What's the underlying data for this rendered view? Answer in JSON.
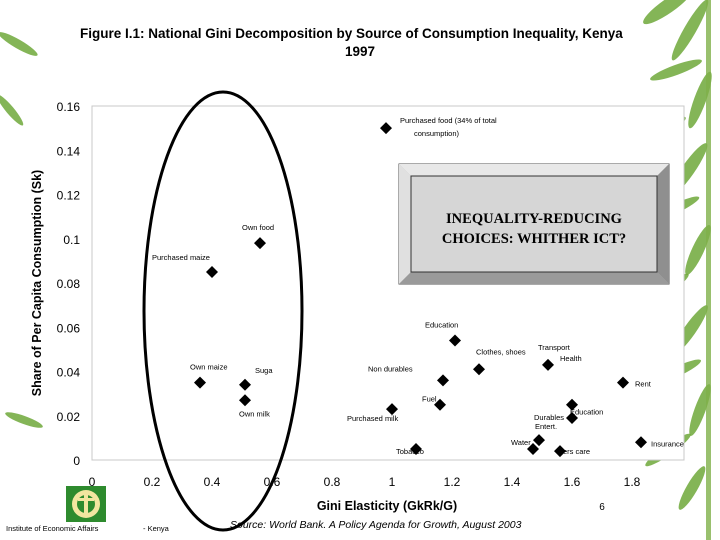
{
  "slide": {
    "title_line1": "Figure I.1: National Gini Decomposition by Source of Consumption Inequality, Kenya",
    "title_line2": "1997",
    "callout_line1": "INEQUALITY-REDUCING",
    "callout_line2": "CHOICES: WHITHER ICT?",
    "slide_number": "6",
    "footer_org": "Institute of Economic Affairs",
    "footer_country": "- Kenya",
    "source_prefix": "Source:",
    "source_text": " World Bank. A Policy Agenda for Growth, August 2003",
    "colors": {
      "plot_border": "#c8c8c8",
      "marker": "#000000",
      "callout_fill": "#d6d6d6",
      "logo_green": "#2e8b2e"
    }
  },
  "chart_data": {
    "type": "scatter",
    "title": "Figure I.1: National Gini Decomposition by Source of Consumption Inequality, Kenya 1997",
    "xlabel": "Gini Elasticity (GkRk/G)",
    "ylabel": "Share of Per Capita Consumption (Sk)",
    "xlim": [
      0,
      1.9
    ],
    "ylim": [
      0,
      0.16
    ],
    "x_ticks": [
      "0",
      "0.2",
      "0.4",
      "0.6",
      "0.8",
      "1",
      "1.2",
      "1.4",
      "1.6",
      "1.8"
    ],
    "y_ticks": [
      "0",
      "0.02",
      "0.04",
      "0.06",
      "0.08",
      "0.1",
      "0.12",
      "0.14",
      "0.16"
    ],
    "grid": false,
    "points": [
      {
        "label": "Purchased food (34% of total",
        "label2": "consumption)",
        "x": 0.98,
        "y": 0.15
      },
      {
        "label": "Own food",
        "x": 0.56,
        "y": 0.098
      },
      {
        "label": "Purchased maize",
        "x": 0.4,
        "y": 0.085
      },
      {
        "label": "Own maize",
        "x": 0.36,
        "y": 0.035
      },
      {
        "label": "Suga",
        "x": 0.51,
        "y": 0.034
      },
      {
        "label": "Own milk",
        "x": 0.51,
        "y": 0.027
      },
      {
        "label": "Education",
        "x": 1.21,
        "y": 0.054
      },
      {
        "label": "Transport",
        "label2": "Health",
        "x": 1.52,
        "y": 0.043
      },
      {
        "label": "Clothes, shoes",
        "x": 1.29,
        "y": 0.041
      },
      {
        "label": "Non durables",
        "x": 1.17,
        "y": 0.036
      },
      {
        "label": "Rent",
        "x": 1.77,
        "y": 0.035
      },
      {
        "label": "Fuel",
        "x": 1.16,
        "y": 0.025
      },
      {
        "label": "Purchased milk",
        "x": 1.0,
        "y": 0.023
      },
      {
        "label": "Education",
        "x": 1.6,
        "y": 0.025
      },
      {
        "label": "Durables",
        "x": 1.6,
        "y": 0.019
      },
      {
        "label": "Tobacco",
        "x": 1.08,
        "y": 0.005
      },
      {
        "label": "Water",
        "x": 1.47,
        "y": 0.005
      },
      {
        "label": "Entert.",
        "x": 1.49,
        "y": 0.009
      },
      {
        "label": "Pers care",
        "x": 1.56,
        "y": 0.004
      },
      {
        "label": "Insurance",
        "x": 1.83,
        "y": 0.008
      }
    ]
  }
}
